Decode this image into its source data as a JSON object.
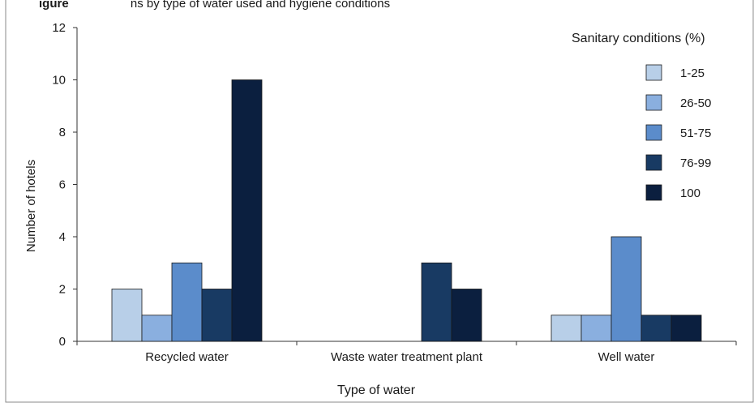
{
  "header_fragment": {
    "bold": "igure",
    "rest": "ns by type of water used and hygiene conditions"
  },
  "chart_data": {
    "type": "bar",
    "title": "",
    "xlabel": "Type of water",
    "ylabel": "Number of hotels",
    "ylim": [
      0,
      12
    ],
    "yticks": [
      0,
      2,
      4,
      6,
      8,
      10,
      12
    ],
    "grid": false,
    "legend_title": "Sanitary conditions (%)",
    "legend_position": "top-right",
    "categories": [
      "Recycled water",
      "Waste water treatment plant",
      "Well water"
    ],
    "series": [
      {
        "name": "1-25",
        "color": "#b8cfe8",
        "values": [
          2,
          0,
          1
        ]
      },
      {
        "name": "26-50",
        "color": "#8aafdf",
        "values": [
          1,
          0,
          1
        ]
      },
      {
        "name": "51-75",
        "color": "#5b8ccb",
        "values": [
          3,
          0,
          4
        ]
      },
      {
        "name": "76-99",
        "color": "#183a63",
        "values": [
          2,
          3,
          1
        ]
      },
      {
        "name": "100",
        "color": "#0b1f3f",
        "values": [
          10,
          2,
          1
        ]
      }
    ]
  }
}
